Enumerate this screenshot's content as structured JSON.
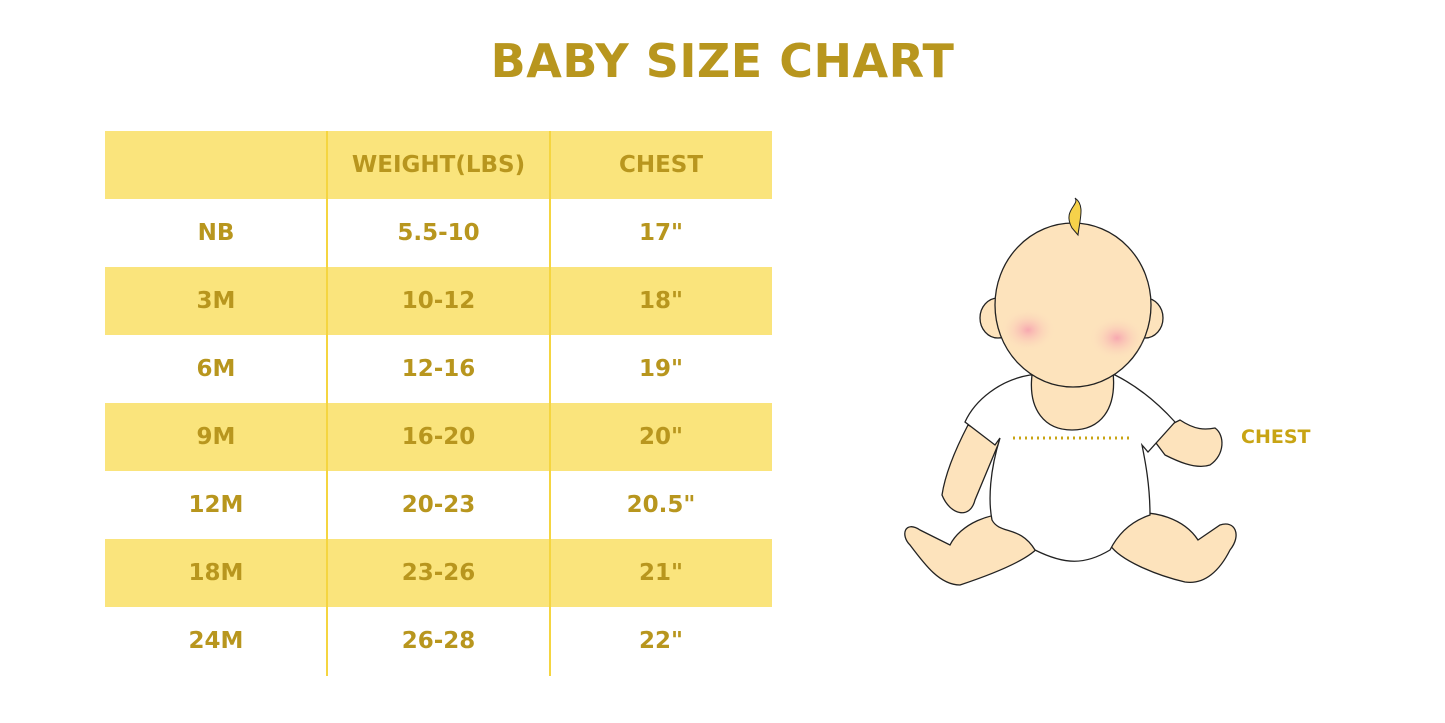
{
  "title": "BABY SIZE CHART",
  "table": {
    "headers": [
      "",
      "WEIGHT(LBS)",
      "CHEST"
    ],
    "rows": [
      [
        "NB",
        "5.5-10",
        "17\""
      ],
      [
        "3M",
        "10-12",
        "18\""
      ],
      [
        "6M",
        "12-16",
        "19\""
      ],
      [
        "9M",
        "16-20",
        "20\""
      ],
      [
        "12M",
        "20-23",
        "20.5\""
      ],
      [
        "18M",
        "23-26",
        "21\""
      ],
      [
        "24M",
        "26-28",
        "22\""
      ]
    ]
  },
  "illustration": {
    "label": "CHEST"
  },
  "colors": {
    "accent_text": "#B8961E",
    "band": "#FAE47C",
    "divider": "#F5D540",
    "skin": "#FDE3BC"
  }
}
